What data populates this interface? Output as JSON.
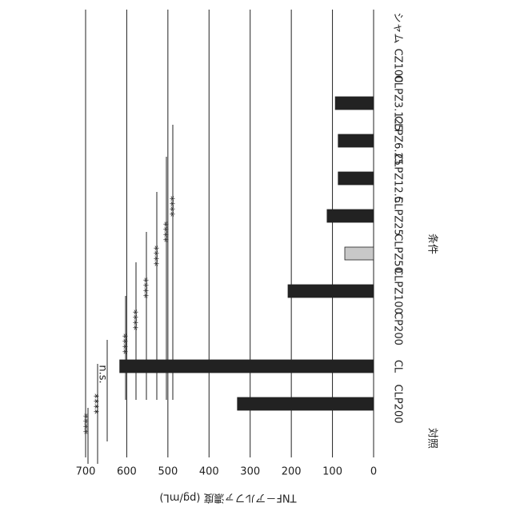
{
  "chart_data": {
    "type": "bar",
    "ylabel": "TNF－アルファ濃度 (pg/mL)",
    "xlabel": "条件",
    "group_label": "対照",
    "categories": [
      "CLP200",
      "CL",
      "CP200",
      "CLPZ100",
      "CLPZ50",
      "CLPZ25",
      "CLPZ12.5",
      "CLPZ6.25",
      "CLPZ3.125",
      "CZ100",
      "シャム"
    ],
    "values": [
      331,
      617,
      0,
      208,
      70,
      113,
      86,
      86,
      93,
      0,
      0
    ],
    "colors": [
      "#222222",
      "#222222",
      "#222222",
      "#222222",
      "#c8c8c8",
      "#222222",
      "#222222",
      "#222222",
      "#222222",
      "#222222",
      "#222222"
    ],
    "ylim": [
      0,
      700
    ],
    "yticks": [
      0,
      100,
      200,
      300,
      400,
      500,
      600,
      700
    ],
    "grid": true,
    "annotations": [
      "****",
      "****",
      "n.s.",
      "****",
      "****",
      "****",
      "****",
      "****",
      "****"
    ]
  }
}
